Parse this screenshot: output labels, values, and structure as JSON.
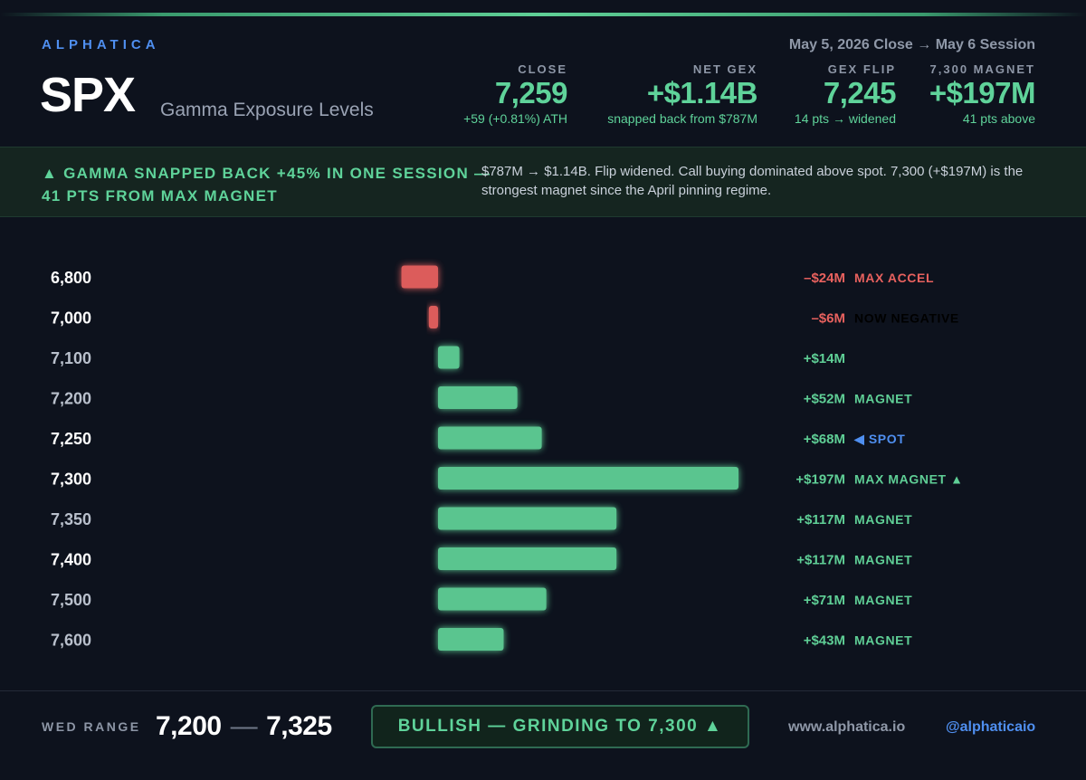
{
  "header": {
    "brand": "ALPHATICA",
    "ticker": "SPX",
    "subtitle": "Gamma Exposure Levels",
    "session": "May 5, 2026 Close → May 6 Session"
  },
  "stats": [
    {
      "label": "CLOSE",
      "value": "7,259",
      "sub": "+59 (+0.81%) ATH"
    },
    {
      "label": "NET GEX",
      "value": "+$1.14B",
      "sub": "snapped back from $787M"
    },
    {
      "label": "GEX FLIP",
      "value": "7,245",
      "sub": "14 pts → widened"
    },
    {
      "label": "7,300 MAGNET",
      "value": "+$197M",
      "sub": "41 pts above"
    }
  ],
  "banner": {
    "headline": "▲ GAMMA SNAPPED BACK +45% IN ONE SESSION — 41 PTS FROM MAX MAGNET",
    "text": "$787M → $1.14B. Flip widened. Call buying dominated above spot. 7,300 (+$197M) is the strongest magnet since the April pinning regime."
  },
  "chart_data": {
    "type": "bar",
    "orientation": "horizontal",
    "unit": "$M",
    "categories": [
      "6,800",
      "7,000",
      "7,100",
      "7,200",
      "7,250",
      "7,300",
      "7,350",
      "7,400",
      "7,500",
      "7,600"
    ],
    "values": [
      -24,
      -6,
      14,
      52,
      68,
      197,
      117,
      117,
      71,
      43
    ],
    "value_labels": [
      "–$24M",
      "–$6M",
      "+$14M",
      "+$52M",
      "+$68M",
      "+$197M",
      "+$117M",
      "+$117M",
      "+$71M",
      "+$43M"
    ],
    "tags": [
      "MAX ACCEL",
      "NOW NEGATIVE",
      "",
      "MAGNET",
      "◀ SPOT",
      "MAX MAGNET ▲",
      "MAGNET",
      "MAGNET",
      "MAGNET",
      "MAGNET"
    ],
    "highlight_strikes": [
      "6,800",
      "7,000",
      "7,250",
      "7,300",
      "7,400"
    ],
    "colors": {
      "positive": "#5fcf96",
      "negative": "#e8615e",
      "spot_tag": "#4f8ff0",
      "now_negative_tag": "#000000",
      "strike_default": "#b9c0cc",
      "strike_highlight": "#ffffff"
    }
  },
  "footer": {
    "range_label": "WED RANGE",
    "range_low": "7,200",
    "range_sep": "—",
    "range_high": "7,325",
    "verdict": "BULLISH — GRINDING TO 7,300 ▲",
    "site": "www.alphatica.io",
    "handle": "@alphaticaio"
  }
}
